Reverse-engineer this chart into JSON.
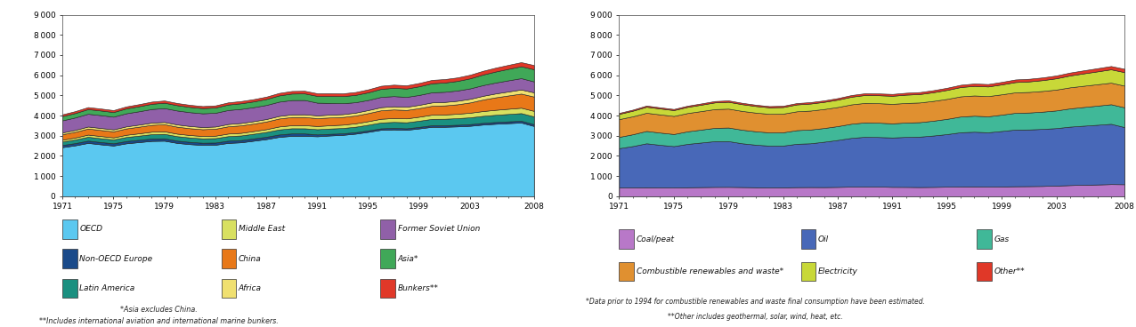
{
  "years": [
    1971,
    1972,
    1973,
    1974,
    1975,
    1976,
    1977,
    1978,
    1979,
    1980,
    1981,
    1982,
    1983,
    1984,
    1985,
    1986,
    1987,
    1988,
    1989,
    1990,
    1991,
    1992,
    1993,
    1994,
    1995,
    1996,
    1997,
    1998,
    1999,
    2000,
    2001,
    2002,
    2003,
    2004,
    2005,
    2006,
    2007,
    2008
  ],
  "chart1_series_order": [
    "OECD",
    "Non-OECD Europe",
    "Latin America",
    "Middle East",
    "China",
    "Africa",
    "Former Soviet Union",
    "Asia*",
    "Bunkers**"
  ],
  "chart1_colors": {
    "OECD": "#5BC8F0",
    "Non-OECD Europe": "#1A4A8A",
    "Latin America": "#1A9080",
    "Middle East": "#D8E060",
    "China": "#E87818",
    "Africa": "#F0E070",
    "Former Soviet Union": "#9060A8",
    "Asia*": "#40A858",
    "Bunkers**": "#E03828"
  },
  "chart1_data": {
    "OECD": [
      2430,
      2520,
      2640,
      2570,
      2510,
      2620,
      2680,
      2740,
      2750,
      2640,
      2580,
      2540,
      2550,
      2640,
      2670,
      2750,
      2830,
      2940,
      2990,
      2990,
      2970,
      3010,
      3040,
      3100,
      3190,
      3290,
      3310,
      3290,
      3360,
      3440,
      3440,
      3460,
      3490,
      3550,
      3590,
      3620,
      3650,
      3480
    ],
    "Non-OECD Europe": [
      110,
      112,
      115,
      114,
      112,
      114,
      116,
      118,
      118,
      115,
      112,
      110,
      110,
      112,
      112,
      114,
      116,
      120,
      122,
      120,
      92,
      82,
      77,
      74,
      73,
      75,
      77,
      75,
      77,
      79,
      79,
      81,
      83,
      85,
      87,
      89,
      90,
      89
    ],
    "Latin America": [
      170,
      178,
      190,
      190,
      190,
      200,
      205,
      215,
      220,
      220,
      218,
      215,
      218,
      225,
      228,
      230,
      238,
      248,
      255,
      255,
      258,
      262,
      265,
      270,
      280,
      288,
      295,
      298,
      305,
      315,
      320,
      328,
      338,
      348,
      358,
      368,
      378,
      385
    ],
    "Middle East": [
      90,
      98,
      108,
      108,
      102,
      110,
      116,
      125,
      128,
      125,
      122,
      120,
      122,
      128,
      130,
      135,
      140,
      148,
      152,
      155,
      158,
      162,
      165,
      170,
      178,
      186,
      192,
      195,
      200,
      208,
      212,
      218,
      228,
      238,
      248,
      258,
      268,
      275
    ],
    "China": [
      270,
      285,
      300,
      300,
      300,
      315,
      328,
      338,
      350,
      345,
      338,
      335,
      345,
      360,
      370,
      370,
      380,
      395,
      405,
      405,
      390,
      388,
      380,
      385,
      400,
      420,
      425,
      415,
      425,
      440,
      450,
      470,
      510,
      570,
      620,
      660,
      700,
      710
    ],
    "Africa": [
      90,
      95,
      100,
      100,
      98,
      102,
      105,
      110,
      112,
      112,
      110,
      108,
      110,
      115,
      118,
      120,
      122,
      128,
      132,
      135,
      138,
      140,
      142,
      145,
      150,
      155,
      158,
      160,
      164,
      168,
      172,
      175,
      180,
      186,
      192,
      198,
      204,
      210
    ],
    "Former Soviet Union": [
      600,
      615,
      632,
      635,
      630,
      648,
      660,
      675,
      688,
      690,
      685,
      680,
      680,
      692,
      698,
      695,
      698,
      708,
      710,
      708,
      630,
      580,
      540,
      515,
      500,
      510,
      505,
      490,
      490,
      500,
      502,
      508,
      518,
      530,
      540,
      552,
      562,
      540
    ],
    "Asia*": [
      210,
      220,
      232,
      232,
      230,
      242,
      250,
      260,
      268,
      265,
      260,
      258,
      262,
      272,
      280,
      285,
      295,
      310,
      322,
      328,
      335,
      345,
      352,
      365,
      380,
      398,
      410,
      415,
      430,
      448,
      460,
      475,
      498,
      525,
      548,
      570,
      590,
      605
    ],
    "Bunkers**": [
      90,
      95,
      100,
      98,
      96,
      100,
      103,
      108,
      110,
      108,
      105,
      102,
      104,
      108,
      110,
      113,
      118,
      123,
      128,
      130,
      132,
      135,
      138,
      142,
      148,
      153,
      158,
      160,
      165,
      170,
      172,
      175,
      180,
      186,
      192,
      198,
      204,
      208
    ]
  },
  "chart2_series_order": [
    "Coal/peat",
    "Oil",
    "Gas",
    "Combustible renewables and waste*",
    "Electricity",
    "Other**"
  ],
  "chart2_colors": {
    "Coal/peat": "#B878C8",
    "Oil": "#4868B8",
    "Gas": "#40B898",
    "Combustible renewables and waste*": "#E09030",
    "Electricity": "#C8D838",
    "Other**": "#E03828"
  },
  "chart2_data": {
    "Coal/peat": [
      430,
      435,
      442,
      435,
      432,
      442,
      450,
      458,
      460,
      452,
      442,
      435,
      438,
      448,
      452,
      450,
      458,
      470,
      475,
      472,
      460,
      458,
      452,
      458,
      468,
      480,
      485,
      478,
      482,
      492,
      498,
      505,
      525,
      548,
      565,
      580,
      598,
      592
    ],
    "Oil": [
      1950,
      2050,
      2180,
      2110,
      2050,
      2150,
      2210,
      2270,
      2270,
      2170,
      2110,
      2070,
      2070,
      2150,
      2170,
      2250,
      2330,
      2420,
      2470,
      2460,
      2450,
      2480,
      2500,
      2550,
      2610,
      2690,
      2710,
      2690,
      2750,
      2810,
      2810,
      2830,
      2850,
      2900,
      2930,
      2960,
      2990,
      2830
    ],
    "Gas": [
      560,
      585,
      612,
      608,
      600,
      622,
      640,
      660,
      674,
      672,
      665,
      658,
      660,
      675,
      682,
      680,
      686,
      702,
      712,
      710,
      700,
      712,
      718,
      735,
      756,
      780,
      794,
      792,
      810,
      830,
      840,
      856,
      876,
      904,
      926,
      948,
      970,
      980
    ],
    "Combustible renewables and waste*": [
      880,
      890,
      902,
      900,
      896,
      908,
      918,
      930,
      936,
      932,
      926,
      920,
      924,
      935,
      940,
      942,
      948,
      960,
      968,
      968,
      968,
      972,
      976,
      982,
      990,
      1000,
      1005,
      1002,
      1008,
      1016,
      1020,
      1026,
      1035,
      1045,
      1054,
      1062,
      1070,
      1076
    ],
    "Electricity": [
      260,
      278,
      298,
      295,
      290,
      305,
      318,
      332,
      340,
      336,
      328,
      322,
      328,
      342,
      350,
      355,
      365,
      380,
      392,
      395,
      400,
      412,
      418,
      430,
      445,
      462,
      475,
      478,
      492,
      510,
      522,
      538,
      560,
      588,
      614,
      638,
      662,
      670
    ],
    "Other**": [
      50,
      55,
      60,
      58,
      56,
      60,
      63,
      68,
      70,
      68,
      65,
      62,
      64,
      68,
      70,
      73,
      78,
      83,
      88,
      90,
      92,
      95,
      98,
      102,
      108,
      113,
      118,
      120,
      125,
      130,
      132,
      135,
      140,
      146,
      152,
      158,
      164,
      168
    ]
  },
  "chart1_footnotes": [
    "*Asia excludes China.",
    "**Includes international aviation and international marine bunkers."
  ],
  "chart2_footnotes": [
    "*Data prior to 1994 for combustible renewables and waste final consumption have been estimated.",
    "**Other includes geothermal, solar, wind, heat, etc."
  ],
  "legend1_cols": [
    [
      {
        "label": "OECD",
        "color": "#5BC8F0"
      },
      {
        "label": "Non-OECD Europe",
        "color": "#1A4A8A"
      },
      {
        "label": "Latin America",
        "color": "#1A9080"
      }
    ],
    [
      {
        "label": "Middle East",
        "color": "#D8E060"
      },
      {
        "label": "China",
        "color": "#E87818"
      },
      {
        "label": "Africa",
        "color": "#F0E070"
      }
    ],
    [
      {
        "label": "Former Soviet Union",
        "color": "#9060A8"
      },
      {
        "label": "Asia*",
        "color": "#40A858"
      },
      {
        "label": "Bunkers**",
        "color": "#E03828"
      }
    ]
  ],
  "legend2_cols": [
    [
      {
        "label": "Coal/peat",
        "color": "#B878C8"
      },
      {
        "label": "Combustible renewables and waste*",
        "color": "#E09030"
      }
    ],
    [
      {
        "label": "Oil",
        "color": "#4868B8"
      },
      {
        "label": "Electricity",
        "color": "#C8D838"
      }
    ],
    [
      {
        "label": "Gas",
        "color": "#40B898"
      },
      {
        "label": "Other**",
        "color": "#E03828"
      }
    ]
  ],
  "ylim": [
    0,
    9000
  ],
  "yticks": [
    0,
    1000,
    2000,
    3000,
    4000,
    5000,
    6000,
    7000,
    8000,
    9000
  ],
  "xticks": [
    1971,
    1975,
    1979,
    1983,
    1987,
    1991,
    1995,
    1999,
    2003,
    2008
  ],
  "bg_color": "#FFFFFF"
}
